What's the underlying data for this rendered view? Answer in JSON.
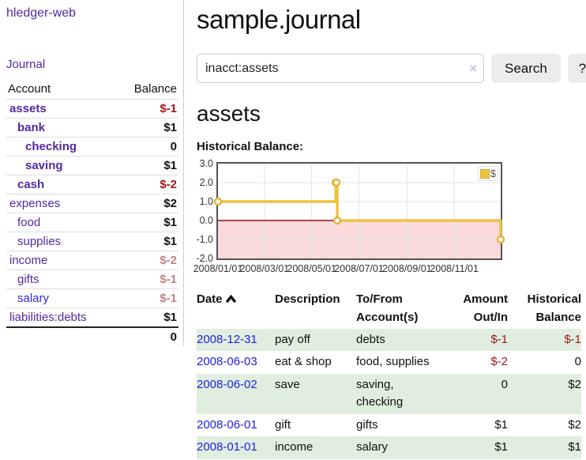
{
  "app": {
    "title": "hledger-web"
  },
  "sidebar": {
    "journal_label": "Journal",
    "accounts": {
      "headers": [
        "Account",
        "Balance"
      ],
      "rows": [
        {
          "name": "assets",
          "balance": "$-1",
          "indent": 0,
          "bold": true,
          "balance_style": "neg"
        },
        {
          "name": "bank",
          "balance": "$1",
          "indent": 1,
          "bold": true,
          "balance_style": "pos"
        },
        {
          "name": "checking",
          "balance": "0",
          "indent": 2,
          "bold": true,
          "balance_style": "pos"
        },
        {
          "name": "saving",
          "balance": "$1",
          "indent": 2,
          "bold": true,
          "balance_style": "pos"
        },
        {
          "name": "cash",
          "balance": "$-2",
          "indent": 1,
          "bold": true,
          "balance_style": "neg"
        },
        {
          "name": "expenses",
          "balance": "$2",
          "indent": 0,
          "bold": false,
          "balance_style": "pos"
        },
        {
          "name": "food",
          "balance": "$1",
          "indent": 1,
          "bold": false,
          "balance_style": "pos"
        },
        {
          "name": "supplies",
          "balance": "$1",
          "indent": 1,
          "bold": false,
          "balance_style": "pos"
        },
        {
          "name": "income",
          "balance": "$-2",
          "indent": 0,
          "bold": false,
          "balance_style": "rose"
        },
        {
          "name": "gifts",
          "balance": "$-1",
          "indent": 1,
          "bold": false,
          "balance_style": "rose"
        },
        {
          "name": "salary",
          "balance": "$-1",
          "indent": 1,
          "bold": false,
          "balance_style": "rose",
          "link_color": "blue"
        },
        {
          "name": "liabilities:debts",
          "balance": "$1",
          "indent": 0,
          "bold": false,
          "balance_style": "pos"
        }
      ],
      "total": "0"
    }
  },
  "main": {
    "title": "sample.journal",
    "search": {
      "value": "inacct:assets",
      "clear_icon": "×",
      "button_label": "Search",
      "help_label": "?"
    },
    "account_heading": "assets",
    "chart_label": "Historical Balance:",
    "chart_data": {
      "type": "line",
      "title": "Historical Balance",
      "step": true,
      "series": [
        {
          "name": "$",
          "color": "#edc240",
          "points": [
            [
              "2008-01-01",
              1
            ],
            [
              "2008-06-01",
              2
            ],
            [
              "2008-06-02",
              2
            ],
            [
              "2008-06-03",
              0
            ],
            [
              "2008-12-31",
              -1
            ]
          ]
        }
      ],
      "ylim": [
        -2,
        3
      ],
      "yticks": [
        3.0,
        2.0,
        1.0,
        0.0,
        -1.0,
        -2.0
      ],
      "ytick_labels": [
        "3.0",
        "2.0",
        "1.0",
        "0.0",
        "-1.0",
        "-2.0"
      ],
      "xtick_dates": [
        "2008-01-01",
        "2008-03-01",
        "2008-05-01",
        "2008-07-01",
        "2008-09-01",
        "2008-11-01"
      ],
      "xtick_labels": [
        "2008/01/01",
        "2008/03/01",
        "2008/05/01",
        "2008/07/01",
        "2008/09/01",
        "2008/11/01"
      ],
      "legend_position": "top-right",
      "grid": true,
      "negative_region_color": "#fadada",
      "zero_line_color": "#8b1111",
      "grid_color": "#e3e3e3"
    },
    "register": {
      "headers": [
        {
          "lines": [
            "Date"
          ],
          "sorted": "asc",
          "align": "left"
        },
        {
          "lines": [
            "Description"
          ],
          "align": "left"
        },
        {
          "lines": [
            "To/From",
            "Account(s)"
          ],
          "align": "left"
        },
        {
          "lines": [
            "Amount",
            "Out/In"
          ],
          "align": "right"
        },
        {
          "lines": [
            "Historical",
            "Balance"
          ],
          "align": "right"
        }
      ],
      "rows": [
        {
          "date": "2008-12-31",
          "description": "pay off",
          "accounts": "debts",
          "amount": "$-1",
          "amount_negative": true,
          "balance": "$-1",
          "balance_negative": true,
          "shaded": true
        },
        {
          "date": "2008-06-03",
          "description": "eat & shop",
          "accounts": "food, supplies",
          "amount": "$-2",
          "amount_negative": true,
          "balance": "0",
          "balance_negative": false,
          "shaded": false
        },
        {
          "date": "2008-06-02",
          "description": "save",
          "accounts": "saving,\nchecking",
          "amount": "0",
          "amount_negative": false,
          "balance": "$2",
          "balance_negative": false,
          "shaded": true
        },
        {
          "date": "2008-06-01",
          "description": "gift",
          "accounts": "gifts",
          "amount": "$1",
          "amount_negative": false,
          "balance": "$2",
          "balance_negative": false,
          "shaded": false
        },
        {
          "date": "2008-01-01",
          "description": "income",
          "accounts": "salary",
          "amount": "$1",
          "amount_negative": false,
          "balance": "$1",
          "balance_negative": false,
          "shaded": true
        }
      ]
    }
  }
}
